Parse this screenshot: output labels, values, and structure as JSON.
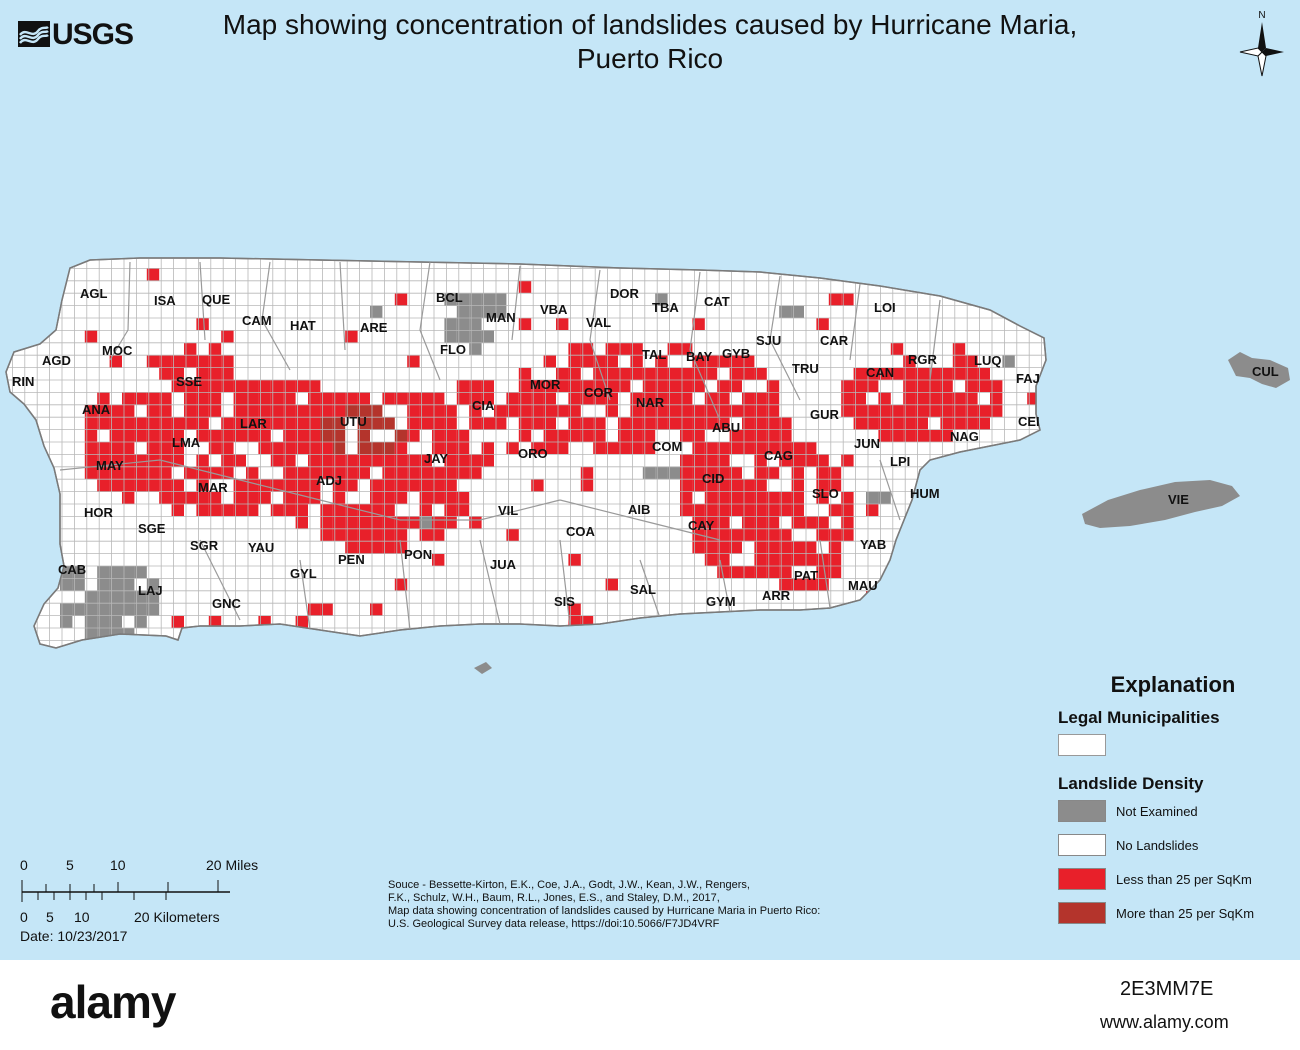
{
  "title_line1": "Map showing concentration of landslides caused by Hurricane Maria,",
  "title_line2": "Puerto Rico",
  "agency": "USGS",
  "north_label": "N",
  "colors": {
    "water": "#c5e6f7",
    "not_examined": "#8c8c8c",
    "no_landslides": "#ffffff",
    "less_than_25": "#e8202a",
    "more_than_25": "#b4342c",
    "grid": "#b8b8b8"
  },
  "municipalities": [
    "AGL",
    "ISA",
    "QUE",
    "CAM",
    "HAT",
    "ARE",
    "BCL",
    "MAN",
    "VBA",
    "VAL",
    "DOR",
    "TBA",
    "CAT",
    "LOI",
    "SJU",
    "CAR",
    "FLO",
    "MOC",
    "AGD",
    "RIN",
    "SSE",
    "ANA",
    "LMA",
    "LAR",
    "UTU",
    "MAY",
    "MAR",
    "ADJ",
    "JAY",
    "CIA",
    "MOR",
    "COR",
    "NAR",
    "TAL",
    "BAY",
    "GYB",
    "TRU",
    "CAN",
    "RGR",
    "LUQ",
    "FAJ",
    "CEI",
    "GUR",
    "ABU",
    "COM",
    "ORO",
    "CID",
    "CAG",
    "JUN",
    "LPI",
    "NAG",
    "SLO",
    "HUM",
    "AIB",
    "CAY",
    "YAB",
    "PAT",
    "MAU",
    "ARR",
    "GYM",
    "SAL",
    "SIS",
    "COA",
    "VIL",
    "JUA",
    "PON",
    "PEN",
    "GYL",
    "YAU",
    "SGR",
    "SGE",
    "HOR",
    "CAB",
    "LAJ",
    "GNC"
  ],
  "islands": [
    "CUL",
    "VIE"
  ],
  "legend": {
    "heading": "Explanation",
    "muni_label": "Legal Municipalities",
    "density_label": "Landslide Density",
    "items": [
      {
        "label": "Not Examined",
        "color": "#8c8c8c"
      },
      {
        "label": "No Landslides",
        "color": "#ffffff"
      },
      {
        "label": "Less than 25 per SqKm",
        "color": "#e8202a"
      },
      {
        "label": "More than 25 per SqKm",
        "color": "#b4342c"
      }
    ]
  },
  "scale": {
    "miles_ticks": [
      "0",
      "5",
      "10",
      "20 Miles"
    ],
    "km_ticks": [
      "0",
      "5",
      "10",
      "20 Kilometers"
    ]
  },
  "date": "Date: 10/23/2017",
  "source": [
    "Souce - Bessette-Kirton, E.K., Coe, J.A., Godt, J.W., Kean, J.W., Rengers,",
    "F.K., Schulz, W.H., Baum, R.L., Jones, E.S., and Staley, D.M., 2017,",
    "Map data showing concentration of landslides caused by Hurricane Maria in Puerto Rico:",
    "U.S. Geological Survey data release, https://doi:10.5066/F7JD4VRF"
  ],
  "stock": {
    "logo": "alamy",
    "image_id": "2E3MM7E",
    "url": "www.alamy.com"
  }
}
